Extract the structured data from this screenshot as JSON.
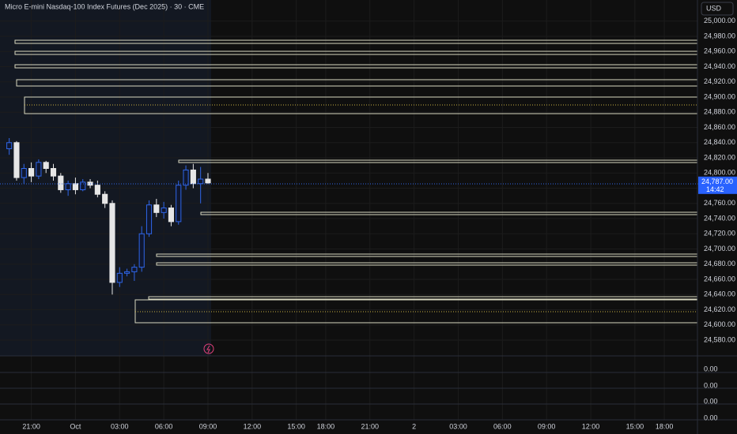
{
  "chart_data": {
    "type": "candlestick",
    "title": "Micro E-mini Nasdaq-100 Index Futures (Dec 2025) · 30 · CME",
    "currency": "USD",
    "categories": [
      null,
      null,
      null,
      "21:00",
      null,
      null,
      null,
      null,
      null,
      "Oct",
      null,
      null,
      null,
      null,
      null,
      "03:00",
      null,
      null,
      null,
      null,
      null,
      "06:00",
      null,
      null,
      null,
      null,
      null,
      "09:00",
      null,
      null,
      null,
      null,
      null,
      "12:00",
      null,
      null,
      null,
      null,
      null,
      "15:00",
      null,
      null,
      null,
      "18:00",
      null,
      null,
      null,
      null,
      null,
      "21:00",
      null,
      null,
      null,
      null,
      null,
      "2",
      null,
      null,
      null,
      null,
      null,
      "03:00",
      null,
      null,
      null,
      null,
      null,
      "06:00",
      null,
      null,
      null,
      null,
      null,
      "09:00",
      null,
      null,
      null,
      null,
      null,
      "12:00",
      null,
      null,
      null,
      null,
      null,
      "15:00",
      null,
      null,
      null,
      "18:00",
      null,
      null,
      null,
      null
    ],
    "open": [
      24832,
      24840,
      24794,
      24806,
      24796,
      24814,
      24806,
      24796,
      24778,
      24786,
      24778,
      24788,
      24784,
      24772,
      24760,
      24656,
      24668,
      24670,
      24676,
      24720,
      24758,
      24748,
      24754,
      24736,
      24784,
      24804,
      24786,
      24792,
      null,
      null,
      null,
      null,
      null,
      null,
      null,
      null,
      null,
      null,
      null,
      null,
      null,
      null,
      null,
      null,
      null,
      null,
      null,
      null,
      null,
      null,
      null,
      null,
      null,
      null,
      null,
      null,
      null,
      null,
      null,
      null,
      null,
      null,
      null,
      null,
      null,
      null,
      null,
      null,
      null,
      null,
      null,
      null,
      null,
      null,
      null,
      null,
      null,
      null,
      null,
      null,
      null,
      null,
      null,
      null,
      null,
      null,
      null,
      null,
      null,
      null,
      null,
      null,
      null,
      null
    ],
    "high": [
      24846,
      24842,
      24812,
      24814,
      24818,
      24816,
      24812,
      24800,
      24790,
      24794,
      24792,
      24792,
      24790,
      24776,
      24764,
      24676,
      24674,
      24680,
      24730,
      24764,
      24766,
      24762,
      24758,
      24790,
      24810,
      24812,
      24808,
      24800,
      null,
      null,
      null,
      null,
      null,
      null,
      null,
      null,
      null,
      null,
      null,
      null,
      null,
      null,
      null,
      null,
      null,
      null,
      null,
      null,
      null,
      null,
      null,
      null,
      null,
      null,
      null,
      null,
      null,
      null,
      null,
      null,
      null,
      null,
      null,
      null,
      null,
      null,
      null,
      null,
      null,
      null,
      null,
      null,
      null,
      null,
      null,
      null,
      null,
      null,
      null,
      null,
      null,
      null,
      null,
      null,
      null,
      null,
      null,
      null,
      null,
      null,
      null,
      null,
      null,
      null
    ],
    "low": [
      24824,
      24790,
      24786,
      24788,
      24792,
      24800,
      24790,
      24774,
      24770,
      24772,
      24776,
      24780,
      24768,
      24754,
      24640,
      24650,
      24664,
      24658,
      24670,
      24716,
      24742,
      24740,
      24730,
      24732,
      24778,
      24780,
      24760,
      24786,
      null,
      null,
      null,
      null,
      null,
      null,
      null,
      null,
      null,
      null,
      null,
      null,
      null,
      null,
      null,
      null,
      null,
      null,
      null,
      null,
      null,
      null,
      null,
      null,
      null,
      null,
      null,
      null,
      null,
      null,
      null,
      null,
      null,
      null,
      null,
      null,
      null,
      null,
      null,
      null,
      null,
      null,
      null,
      null,
      null,
      null,
      null,
      null,
      null,
      null,
      null,
      null,
      null,
      null,
      null,
      null,
      null,
      null,
      null,
      null,
      null,
      null,
      null,
      null,
      null,
      null
    ],
    "close": [
      24840,
      24794,
      24806,
      24796,
      24814,
      24806,
      24796,
      24778,
      24786,
      24778,
      24788,
      24784,
      24772,
      24760,
      24656,
      24668,
      24670,
      24676,
      24720,
      24758,
      24748,
      24754,
      24736,
      24784,
      24804,
      24786,
      24792,
      24787,
      null,
      null,
      null,
      null,
      null,
      null,
      null,
      null,
      null,
      null,
      null,
      null,
      null,
      null,
      null,
      null,
      null,
      null,
      null,
      null,
      null,
      null,
      null,
      null,
      null,
      null,
      null,
      null,
      null,
      null,
      null,
      null,
      null,
      null,
      null,
      null,
      null,
      null,
      null,
      null,
      null,
      null,
      null,
      null,
      null,
      null,
      null,
      null,
      null,
      null,
      null,
      null,
      null,
      null,
      null,
      null,
      null,
      null,
      null,
      null,
      null,
      null,
      null,
      null,
      null,
      null
    ],
    "up_color": "#2f66e8",
    "down_color": "#e6e6e6",
    "ylim": [
      24560.3,
      25027.8
    ],
    "yticks": [
      {
        "value": 25000,
        "label": "25,000.00"
      },
      {
        "value": 24980,
        "label": "24,980.00"
      },
      {
        "value": 24960,
        "label": "24,960.00"
      },
      {
        "value": 24940,
        "label": "24,940.00"
      },
      {
        "value": 24920,
        "label": "24,920.00"
      },
      {
        "value": 24900,
        "label": "24,900.00"
      },
      {
        "value": 24880,
        "label": "24,880.00"
      },
      {
        "value": 24860,
        "label": "24,860.00"
      },
      {
        "value": 24840,
        "label": "24,840.00"
      },
      {
        "value": 24820,
        "label": "24,820.00"
      },
      {
        "value": 24800,
        "label": "24,800.00"
      },
      {
        "value": 24780,
        "label": "24,780.00"
      },
      {
        "value": 24760,
        "label": "24,760.00"
      },
      {
        "value": 24740,
        "label": "24,740.00"
      },
      {
        "value": 24720,
        "label": "24,720.00"
      },
      {
        "value": 24700,
        "label": "24,700.00"
      },
      {
        "value": 24680,
        "label": "24,680.00"
      },
      {
        "value": 24660,
        "label": "24,660.00"
      },
      {
        "value": 24640,
        "label": "24,640.00"
      },
      {
        "value": 24620,
        "label": "24,620.00"
      },
      {
        "value": 24600,
        "label": "24,600.00"
      },
      {
        "value": 24580,
        "label": "24,580.00"
      }
    ],
    "last_price": {
      "value": 24787,
      "label": "24,787.00"
    },
    "countdown": "14:42",
    "sub_pane_labels": [
      "0.00",
      "0.00",
      "0.00",
      "0.00"
    ],
    "grid": true
  }
}
